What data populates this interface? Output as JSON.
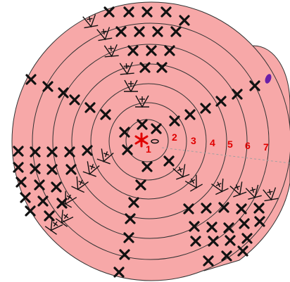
{
  "colors": {
    "fill": "#f7a8a8",
    "ring_stroke": "#333333",
    "stitch": "#111111",
    "label": "#e00000",
    "marker": "#6a1fa8",
    "start_dash": "#a0a0a0"
  },
  "magic_ring_icon": "asterisk",
  "start_marker_icon": "purple-oval",
  "round_labels": [
    "1",
    "2",
    "3",
    "4",
    "5",
    "6",
    "7"
  ],
  "stitch_symbols": {
    "single_crochet": "X",
    "increase": "V with +",
    "chain": "oval"
  }
}
